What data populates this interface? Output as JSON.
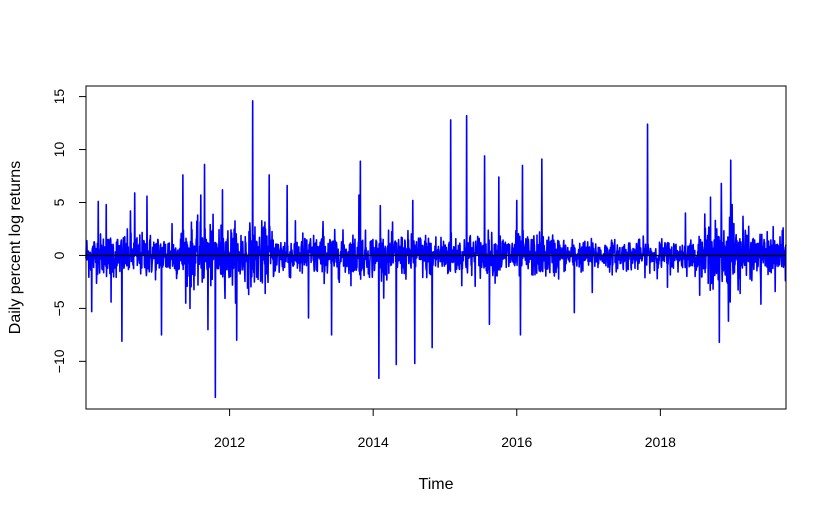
{
  "chart_data": {
    "type": "line",
    "title": "",
    "xlabel": "Time",
    "ylabel": "Daily percent log returns",
    "xlim": [
      2010.0,
      2019.75
    ],
    "ylim": [
      -14.5,
      16.0
    ],
    "x_ticks": [
      2012,
      2014,
      2016,
      2018
    ],
    "x_tick_labels": [
      "2012",
      "2014",
      "2016",
      "2018"
    ],
    "y_ticks": [
      -10,
      -5,
      0,
      5,
      10,
      15
    ],
    "y_tick_labels": [
      "−10",
      "−5",
      "0",
      "5",
      "10",
      "15"
    ],
    "grid": false,
    "legend": "none",
    "reference_line": {
      "y": 0,
      "color": "#000000"
    },
    "series": [
      {
        "color": "#0000ff",
        "frequency": "daily",
        "start": 2010.0,
        "end": 2019.75,
        "typical_band": [
          -3,
          3
        ],
        "spikes": [
          [
            2010.08,
            -5.3
          ],
          [
            2010.17,
            5.1
          ],
          [
            2010.28,
            4.8
          ],
          [
            2010.35,
            -4.4
          ],
          [
            2010.5,
            -8.1
          ],
          [
            2010.62,
            4.2
          ],
          [
            2010.68,
            5.9
          ],
          [
            2010.85,
            5.6
          ],
          [
            2011.05,
            -7.5
          ],
          [
            2011.2,
            3.0
          ],
          [
            2011.35,
            7.6
          ],
          [
            2011.45,
            -5.0
          ],
          [
            2011.6,
            5.7
          ],
          [
            2011.65,
            8.6
          ],
          [
            2011.7,
            -7.0
          ],
          [
            2011.8,
            -13.4
          ],
          [
            2011.9,
            6.2
          ],
          [
            2012.1,
            -8.0
          ],
          [
            2012.32,
            14.6
          ],
          [
            2012.55,
            7.6
          ],
          [
            2012.8,
            6.6
          ],
          [
            2013.1,
            -5.9
          ],
          [
            2013.3,
            3.2
          ],
          [
            2013.42,
            -7.5
          ],
          [
            2013.8,
            5.7
          ],
          [
            2013.82,
            8.9
          ],
          [
            2014.08,
            -11.6
          ],
          [
            2014.1,
            4.7
          ],
          [
            2014.32,
            -10.3
          ],
          [
            2014.55,
            5.2
          ],
          [
            2014.58,
            -10.2
          ],
          [
            2014.82,
            -8.7
          ],
          [
            2015.08,
            12.8
          ],
          [
            2015.3,
            13.2
          ],
          [
            2015.55,
            9.4
          ],
          [
            2015.62,
            -6.5
          ],
          [
            2015.75,
            7.4
          ],
          [
            2016.0,
            5.2
          ],
          [
            2016.05,
            -7.5
          ],
          [
            2016.08,
            8.5
          ],
          [
            2016.35,
            9.1
          ],
          [
            2016.8,
            -5.4
          ],
          [
            2017.05,
            -3.5
          ],
          [
            2017.82,
            12.4
          ],
          [
            2018.1,
            -3.0
          ],
          [
            2018.35,
            4.0
          ],
          [
            2018.7,
            5.5
          ],
          [
            2018.82,
            -8.2
          ],
          [
            2018.85,
            6.8
          ],
          [
            2018.95,
            -6.2
          ],
          [
            2018.98,
            9.0
          ],
          [
            2019.0,
            4.8
          ],
          [
            2019.15,
            3.7
          ],
          [
            2019.4,
            -4.6
          ],
          [
            2019.6,
            -3.4
          ]
        ]
      }
    ]
  }
}
